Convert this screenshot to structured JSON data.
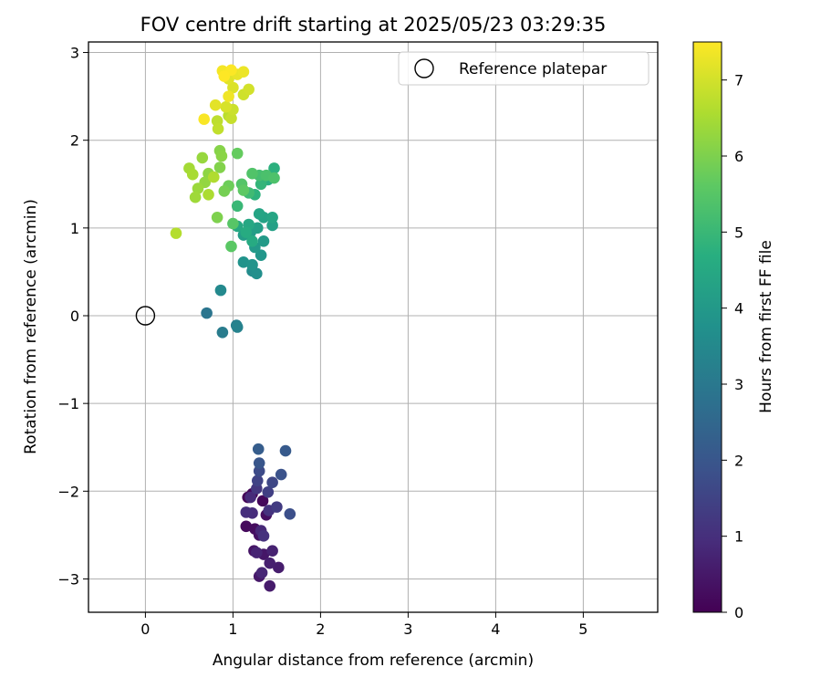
{
  "chart_data": {
    "type": "scatter",
    "title": "FOV centre drift starting at 2025/05/23 03:29:35",
    "xlabel": "Angular distance from reference (arcmin)",
    "ylabel": "Rotation from reference (arcmin)",
    "xlim": [
      -0.65,
      5.85
    ],
    "ylim": [
      -3.38,
      3.12
    ],
    "xticks": [
      0,
      1,
      2,
      3,
      4,
      5
    ],
    "yticks": [
      -3,
      -2,
      -1,
      0,
      1,
      2,
      3
    ],
    "grid": true,
    "legend": {
      "position": "top-right",
      "entries": [
        {
          "label": "Reference platepar",
          "marker": "open-circle"
        }
      ]
    },
    "reference_point": {
      "x": 0,
      "y": 0
    },
    "colorbar": {
      "label": "Hours from first FF file",
      "colormap": "viridis",
      "range": [
        0,
        7.5
      ],
      "ticks": [
        0,
        1,
        2,
        3,
        4,
        5,
        6,
        7
      ]
    },
    "points": [
      {
        "x": 1.17,
        "y": -2.07,
        "t": 0.05
      },
      {
        "x": 1.22,
        "y": -2.03,
        "t": 0.1
      },
      {
        "x": 1.34,
        "y": -2.11,
        "t": 0.15
      },
      {
        "x": 1.15,
        "y": -2.4,
        "t": 0.2
      },
      {
        "x": 1.25,
        "y": -2.43,
        "t": 0.25
      },
      {
        "x": 1.38,
        "y": -2.27,
        "t": 0.3
      },
      {
        "x": 1.3,
        "y": -2.5,
        "t": 0.35
      },
      {
        "x": 1.24,
        "y": -2.68,
        "t": 0.4
      },
      {
        "x": 1.35,
        "y": -2.72,
        "t": 0.45
      },
      {
        "x": 1.3,
        "y": -2.97,
        "t": 0.5
      },
      {
        "x": 1.42,
        "y": -3.08,
        "t": 0.55
      },
      {
        "x": 1.52,
        "y": -2.87,
        "t": 0.6
      },
      {
        "x": 1.42,
        "y": -2.82,
        "t": 0.65
      },
      {
        "x": 1.45,
        "y": -2.68,
        "t": 0.7
      },
      {
        "x": 1.27,
        "y": -2.7,
        "t": 0.75
      },
      {
        "x": 1.33,
        "y": -2.93,
        "t": 0.8
      },
      {
        "x": 1.32,
        "y": -2.45,
        "t": 0.85
      },
      {
        "x": 1.2,
        "y": -2.07,
        "t": 0.9
      },
      {
        "x": 1.22,
        "y": -2.25,
        "t": 0.95
      },
      {
        "x": 1.15,
        "y": -2.24,
        "t": 1.0
      },
      {
        "x": 1.35,
        "y": -2.51,
        "t": 1.05
      },
      {
        "x": 1.41,
        "y": -2.22,
        "t": 1.1
      },
      {
        "x": 1.27,
        "y": -1.97,
        "t": 1.2
      },
      {
        "x": 1.5,
        "y": -2.18,
        "t": 1.3
      },
      {
        "x": 1.4,
        "y": -2.01,
        "t": 1.4
      },
      {
        "x": 1.28,
        "y": -1.88,
        "t": 1.5
      },
      {
        "x": 1.45,
        "y": -1.9,
        "t": 1.6
      },
      {
        "x": 1.3,
        "y": -1.77,
        "t": 1.7
      },
      {
        "x": 1.65,
        "y": -2.26,
        "t": 1.8
      },
      {
        "x": 1.55,
        "y": -1.81,
        "t": 1.9
      },
      {
        "x": 1.3,
        "y": -1.68,
        "t": 2.0
      },
      {
        "x": 1.6,
        "y": -1.54,
        "t": 2.1
      },
      {
        "x": 1.29,
        "y": -1.52,
        "t": 2.2
      },
      {
        "x": 0.7,
        "y": 0.03,
        "t": 2.9
      },
      {
        "x": 0.88,
        "y": -0.19,
        "t": 3.1
      },
      {
        "x": 1.04,
        "y": -0.11,
        "t": 3.2
      },
      {
        "x": 1.05,
        "y": -0.13,
        "t": 3.3
      },
      {
        "x": 0.86,
        "y": 0.29,
        "t": 3.5
      },
      {
        "x": 1.22,
        "y": 0.51,
        "t": 3.6
      },
      {
        "x": 1.27,
        "y": 0.48,
        "t": 3.7
      },
      {
        "x": 1.12,
        "y": 0.61,
        "t": 3.8
      },
      {
        "x": 1.22,
        "y": 0.58,
        "t": 3.85
      },
      {
        "x": 1.32,
        "y": 0.69,
        "t": 3.9
      },
      {
        "x": 1.25,
        "y": 0.78,
        "t": 4.0
      },
      {
        "x": 1.35,
        "y": 0.85,
        "t": 4.05
      },
      {
        "x": 1.2,
        "y": 0.95,
        "t": 4.1
      },
      {
        "x": 1.12,
        "y": 0.92,
        "t": 4.15
      },
      {
        "x": 1.28,
        "y": 1.0,
        "t": 4.2
      },
      {
        "x": 1.45,
        "y": 1.03,
        "t": 4.25
      },
      {
        "x": 1.35,
        "y": 1.12,
        "t": 4.3
      },
      {
        "x": 1.3,
        "y": 1.16,
        "t": 4.35
      },
      {
        "x": 1.45,
        "y": 1.12,
        "t": 4.4
      },
      {
        "x": 1.18,
        "y": 1.04,
        "t": 4.45
      },
      {
        "x": 1.05,
        "y": 1.02,
        "t": 4.5
      },
      {
        "x": 1.22,
        "y": 0.85,
        "t": 4.55
      },
      {
        "x": 1.15,
        "y": 0.95,
        "t": 4.6
      },
      {
        "x": 1.4,
        "y": 1.55,
        "t": 4.7
      },
      {
        "x": 1.47,
        "y": 1.68,
        "t": 4.75
      },
      {
        "x": 1.25,
        "y": 1.38,
        "t": 4.8
      },
      {
        "x": 1.32,
        "y": 1.5,
        "t": 4.9
      },
      {
        "x": 1.05,
        "y": 1.25,
        "t": 5.0
      },
      {
        "x": 1.18,
        "y": 1.4,
        "t": 5.1
      },
      {
        "x": 1.3,
        "y": 1.6,
        "t": 5.2
      },
      {
        "x": 1.38,
        "y": 1.6,
        "t": 5.3
      },
      {
        "x": 1.47,
        "y": 1.57,
        "t": 5.35
      },
      {
        "x": 1.22,
        "y": 1.62,
        "t": 5.4
      },
      {
        "x": 1.1,
        "y": 1.5,
        "t": 5.45
      },
      {
        "x": 1.0,
        "y": 1.05,
        "t": 5.5
      },
      {
        "x": 0.98,
        "y": 0.79,
        "t": 5.55
      },
      {
        "x": 1.12,
        "y": 1.43,
        "t": 5.6
      },
      {
        "x": 1.05,
        "y": 1.85,
        "t": 5.7
      },
      {
        "x": 0.95,
        "y": 1.48,
        "t": 5.8
      },
      {
        "x": 0.9,
        "y": 1.42,
        "t": 5.9
      },
      {
        "x": 0.82,
        "y": 1.12,
        "t": 6.0
      },
      {
        "x": 0.85,
        "y": 1.69,
        "t": 6.05
      },
      {
        "x": 0.85,
        "y": 1.88,
        "t": 6.1
      },
      {
        "x": 0.87,
        "y": 1.82,
        "t": 6.15
      },
      {
        "x": 0.72,
        "y": 1.62,
        "t": 6.2
      },
      {
        "x": 0.68,
        "y": 1.52,
        "t": 6.25
      },
      {
        "x": 0.65,
        "y": 1.8,
        "t": 6.3
      },
      {
        "x": 0.6,
        "y": 1.45,
        "t": 6.35
      },
      {
        "x": 0.57,
        "y": 1.35,
        "t": 6.4
      },
      {
        "x": 0.5,
        "y": 1.68,
        "t": 6.45
      },
      {
        "x": 0.54,
        "y": 1.61,
        "t": 6.5
      },
      {
        "x": 0.72,
        "y": 1.38,
        "t": 6.55
      },
      {
        "x": 0.78,
        "y": 1.58,
        "t": 6.6
      },
      {
        "x": 0.35,
        "y": 0.94,
        "t": 6.65
      },
      {
        "x": 0.95,
        "y": 2.28,
        "t": 6.7
      },
      {
        "x": 0.82,
        "y": 2.22,
        "t": 6.75
      },
      {
        "x": 0.83,
        "y": 2.13,
        "t": 6.8
      },
      {
        "x": 0.98,
        "y": 2.25,
        "t": 6.85
      },
      {
        "x": 1.0,
        "y": 2.35,
        "t": 6.9
      },
      {
        "x": 1.12,
        "y": 2.52,
        "t": 6.95
      },
      {
        "x": 1.18,
        "y": 2.58,
        "t": 7.0
      },
      {
        "x": 0.92,
        "y": 2.38,
        "t": 7.05
      },
      {
        "x": 1.0,
        "y": 2.6,
        "t": 7.1
      },
      {
        "x": 0.95,
        "y": 2.7,
        "t": 7.15
      },
      {
        "x": 0.8,
        "y": 2.4,
        "t": 7.2
      },
      {
        "x": 1.05,
        "y": 2.75,
        "t": 7.25
      },
      {
        "x": 1.12,
        "y": 2.78,
        "t": 7.3
      },
      {
        "x": 0.95,
        "y": 2.5,
        "t": 7.35
      },
      {
        "x": 0.88,
        "y": 2.79,
        "t": 7.4
      },
      {
        "x": 0.67,
        "y": 2.24,
        "t": 7.45
      },
      {
        "x": 0.98,
        "y": 2.8,
        "t": 7.48
      },
      {
        "x": 0.9,
        "y": 2.73,
        "t": 7.5
      }
    ]
  }
}
